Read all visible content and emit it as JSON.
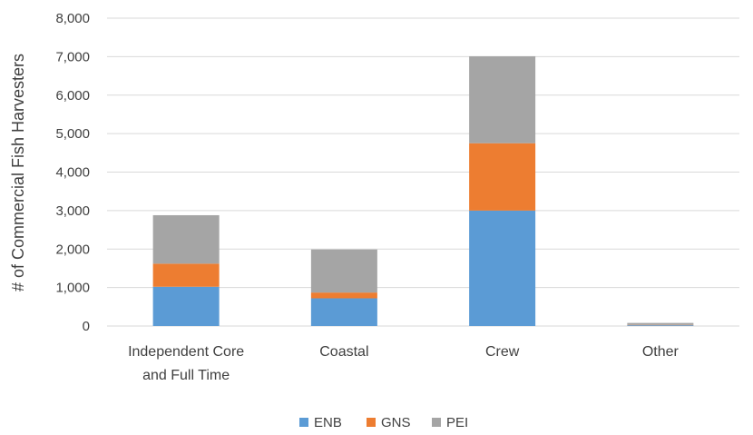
{
  "chart_data": {
    "type": "bar",
    "stacked": true,
    "title": "",
    "xlabel": "",
    "ylabel": "# of Commercial Fish Harvesters",
    "ylim": [
      0,
      8000
    ],
    "yticks": [
      "0",
      "1,000",
      "2,000",
      "3,000",
      "4,000",
      "5,000",
      "6,000",
      "7,000",
      "8,000"
    ],
    "categories": [
      [
        "Independent Core",
        "and Full Time"
      ],
      [
        "Coastal"
      ],
      [
        "Crew"
      ],
      [
        "Other"
      ]
    ],
    "series": [
      {
        "name": "ENB",
        "color": "#5b9bd5",
        "values": [
          1020,
          720,
          3000,
          20
        ]
      },
      {
        "name": "GNS",
        "color": "#ed7d31",
        "values": [
          600,
          150,
          1750,
          10
        ]
      },
      {
        "name": "PEI",
        "color": "#a5a5a5",
        "values": [
          1260,
          1120,
          2260,
          50
        ]
      }
    ],
    "grid": true,
    "legend": "bottom"
  }
}
